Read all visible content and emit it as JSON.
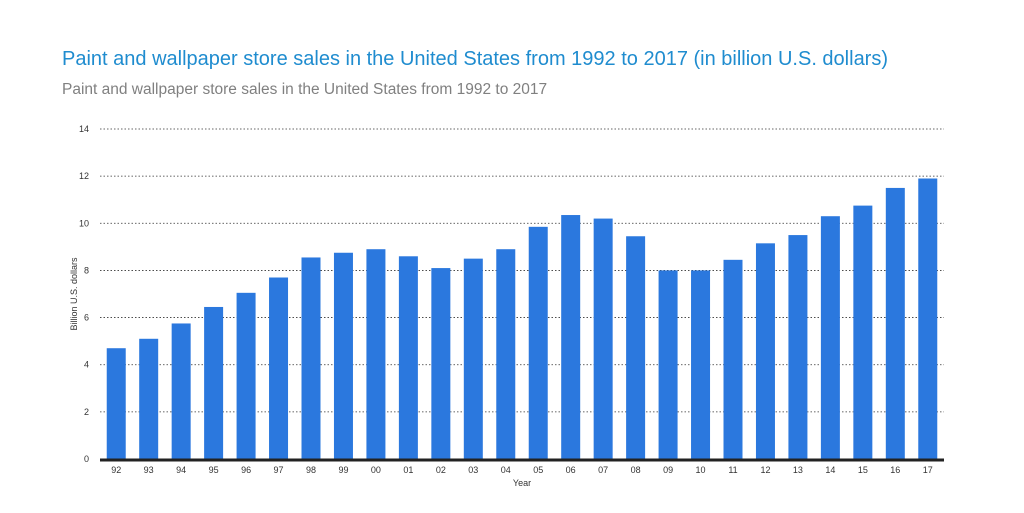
{
  "title": "Paint and wallpaper store sales in the United States from 1992 to 2017 (in billion U.S. dollars)",
  "subtitle": "Paint and wallpaper store sales in the United States from 1992 to 2017",
  "colors": {
    "bar": "#2b78de",
    "title": "#1f8ccf",
    "subtitle": "#808080",
    "grid": "#333333",
    "axis": "#222222"
  },
  "chart_data": {
    "type": "bar",
    "title": "Paint and wallpaper store sales in the United States from 1992 to 2017 (in billion U.S. dollars)",
    "subtitle": "Paint and wallpaper store sales in the United States from 1992 to 2017",
    "xlabel": "Year",
    "ylabel": "Billion U.S. dollars",
    "ylim": [
      0,
      14
    ],
    "yticks": [
      0,
      2,
      4,
      6,
      8,
      10,
      12,
      14
    ],
    "grid": true,
    "categories": [
      "92",
      "93",
      "94",
      "95",
      "96",
      "97",
      "98",
      "99",
      "00",
      "01",
      "02",
      "03",
      "04",
      "05",
      "06",
      "07",
      "08",
      "09",
      "10",
      "11",
      "12",
      "13",
      "14",
      "15",
      "16",
      "17"
    ],
    "values": [
      4.7,
      5.1,
      5.75,
      6.45,
      7.05,
      7.7,
      8.55,
      8.75,
      8.9,
      8.6,
      8.1,
      8.5,
      8.9,
      9.85,
      10.35,
      10.2,
      9.45,
      8.0,
      8.0,
      8.45,
      9.15,
      9.5,
      10.3,
      10.75,
      11.5,
      11.9
    ]
  }
}
